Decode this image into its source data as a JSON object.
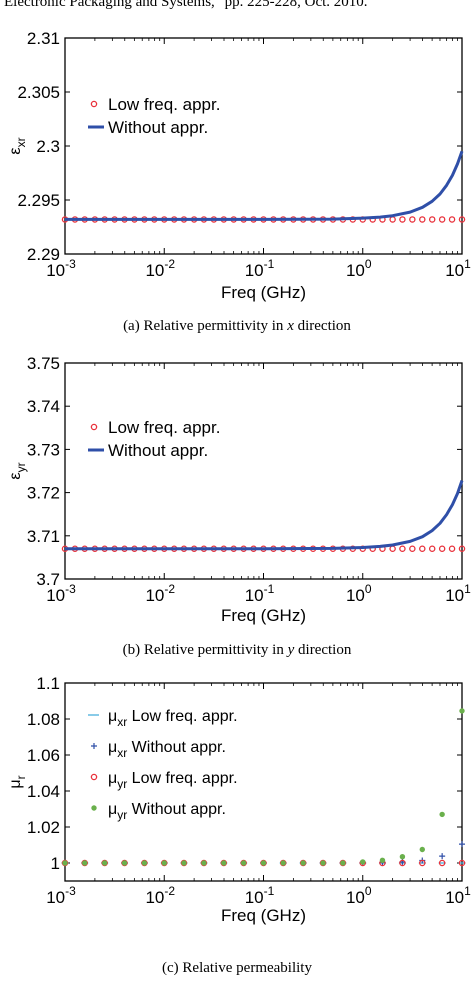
{
  "page": {
    "header_text": "Electronic Packaging and Systems,\" pp. 225-228, Oct. 2010.",
    "captions": [
      {
        "prefix": "(a) Relative permittivity in ",
        "var": "x",
        "suffix": " direction"
      },
      {
        "prefix": "(b) Relative permittivity in ",
        "var": "y",
        "suffix": " direction"
      },
      {
        "prefix": "(c) Relative permeability",
        "var": "",
        "suffix": ""
      }
    ]
  },
  "chart_data": [
    {
      "type": "line",
      "title": "",
      "xlabel": "Freq (GHz)",
      "ylabel": "ε_xr",
      "ylabel_main": "ε",
      "ylabel_sub": "xr",
      "xscale": "log",
      "xlim": [
        0.001,
        10
      ],
      "ylim": [
        2.29,
        2.31
      ],
      "xtick_exponents": [
        "-3",
        "-2",
        "-1",
        "0",
        "1"
      ],
      "yticks": [
        "2.29",
        "2.295",
        "2.3",
        "2.305",
        "2.31"
      ],
      "legend_position": "top-left",
      "series": [
        {
          "name": "Low freq. appr.",
          "legend_main": "Low freq. appr.",
          "legend_sub": "",
          "legend_suffix": "",
          "style": "open-circle",
          "color": "#e8303a",
          "x": [
            0.001,
            0.00126,
            0.00158,
            0.002,
            0.00251,
            0.00316,
            0.00398,
            0.00501,
            0.00631,
            0.00794,
            0.01,
            0.0126,
            0.0158,
            0.02,
            0.0251,
            0.0316,
            0.0398,
            0.0501,
            0.0631,
            0.0794,
            0.1,
            0.126,
            0.158,
            0.2,
            0.251,
            0.316,
            0.398,
            0.501,
            0.631,
            0.794,
            1,
            1.26,
            1.58,
            2,
            2.51,
            3.16,
            3.98,
            5.01,
            6.31,
            7.94,
            10
          ],
          "y": [
            2.2932,
            2.2932,
            2.2932,
            2.2932,
            2.2932,
            2.2932,
            2.2932,
            2.2932,
            2.2932,
            2.2932,
            2.2932,
            2.2932,
            2.2932,
            2.2932,
            2.2932,
            2.2932,
            2.2932,
            2.2932,
            2.2932,
            2.2932,
            2.2932,
            2.2932,
            2.2932,
            2.2932,
            2.2932,
            2.2932,
            2.2932,
            2.2932,
            2.2932,
            2.2932,
            2.2932,
            2.2932,
            2.2932,
            2.2932,
            2.2932,
            2.2932,
            2.2932,
            2.2932,
            2.2932,
            2.2932,
            2.2932
          ]
        },
        {
          "name": "Without appr.",
          "legend_main": "Without appr.",
          "legend_sub": "",
          "legend_suffix": "",
          "style": "line",
          "color": "#2f4fa8",
          "x": [
            0.001,
            0.01,
            0.1,
            0.5,
            1,
            1.5,
            2,
            3,
            4,
            5,
            6,
            7,
            8,
            9,
            10
          ],
          "y": [
            2.2932,
            2.2932,
            2.2932,
            2.29323,
            2.29332,
            2.29342,
            2.29355,
            2.29388,
            2.29432,
            2.29488,
            2.29556,
            2.29636,
            2.29728,
            2.29834,
            2.29952
          ]
        }
      ]
    },
    {
      "type": "line",
      "title": "",
      "xlabel": "Freq (GHz)",
      "ylabel": "ε_yr",
      "ylabel_main": "ε",
      "ylabel_sub": "yr",
      "xscale": "log",
      "xlim": [
        0.001,
        10
      ],
      "ylim": [
        3.7,
        3.75
      ],
      "xtick_exponents": [
        "-3",
        "-2",
        "-1",
        "0",
        "1"
      ],
      "yticks": [
        "3.7",
        "3.71",
        "3.72",
        "3.73",
        "3.74",
        "3.75"
      ],
      "legend_position": "top-left",
      "series": [
        {
          "name": "Low freq. appr.",
          "legend_main": "Low freq. appr.",
          "legend_sub": "",
          "legend_suffix": "",
          "style": "open-circle",
          "color": "#e8303a",
          "x": [
            0.001,
            0.00126,
            0.00158,
            0.002,
            0.00251,
            0.00316,
            0.00398,
            0.00501,
            0.00631,
            0.00794,
            0.01,
            0.0126,
            0.0158,
            0.02,
            0.0251,
            0.0316,
            0.0398,
            0.0501,
            0.0631,
            0.0794,
            0.1,
            0.126,
            0.158,
            0.2,
            0.251,
            0.316,
            0.398,
            0.501,
            0.631,
            0.794,
            1,
            1.26,
            1.58,
            2,
            2.51,
            3.16,
            3.98,
            5.01,
            6.31,
            7.94,
            10
          ],
          "y": [
            3.707,
            3.707,
            3.707,
            3.707,
            3.707,
            3.707,
            3.707,
            3.707,
            3.707,
            3.707,
            3.707,
            3.707,
            3.707,
            3.707,
            3.707,
            3.707,
            3.707,
            3.707,
            3.707,
            3.707,
            3.707,
            3.707,
            3.707,
            3.707,
            3.707,
            3.707,
            3.707,
            3.707,
            3.707,
            3.707,
            3.707,
            3.707,
            3.707,
            3.707,
            3.707,
            3.707,
            3.707,
            3.707,
            3.707,
            3.707,
            3.707
          ]
        },
        {
          "name": "Without appr.",
          "legend_main": "Without appr.",
          "legend_sub": "",
          "legend_suffix": "",
          "style": "line",
          "color": "#2f4fa8",
          "x": [
            0.001,
            0.01,
            0.1,
            0.5,
            1,
            1.5,
            2,
            3,
            4,
            5,
            6,
            7,
            8,
            9,
            10
          ],
          "y": [
            3.707,
            3.707,
            3.707,
            3.70708,
            3.7073,
            3.70755,
            3.70788,
            3.7087,
            3.7098,
            3.7112,
            3.7129,
            3.7149,
            3.7172,
            3.7198,
            3.7228
          ]
        }
      ]
    },
    {
      "type": "scatter",
      "title": "",
      "xlabel": "Freq (GHz)",
      "ylabel": "μ_r",
      "ylabel_main": "μ",
      "ylabel_sub": "r",
      "xscale": "log",
      "xlim": [
        0.001,
        10
      ],
      "ylim": [
        0.99,
        1.1
      ],
      "xtick_exponents": [
        "-3",
        "-2",
        "-1",
        "0",
        "1"
      ],
      "yticks": [
        "1",
        "1.02",
        "1.04",
        "1.06",
        "1.08",
        "1.1"
      ],
      "legend_position": "top-left",
      "series": [
        {
          "name": "μxr Low freq. appr.",
          "legend_main": "μ",
          "legend_sub": "xr",
          "legend_suffix": " Low freq. appr.",
          "style": "dash",
          "color": "#3aa8d8",
          "x": [
            0.001,
            0.00158,
            0.00251,
            0.00398,
            0.00631,
            0.01,
            0.0158,
            0.0251,
            0.0398,
            0.0631,
            0.1,
            0.158,
            0.251,
            0.398,
            0.631,
            1,
            1.58,
            2.51,
            3.98,
            6.31,
            10
          ],
          "y": [
            1,
            1,
            1,
            1,
            1,
            1,
            1,
            1,
            1,
            1,
            1,
            1,
            1,
            1,
            1,
            1,
            1,
            1,
            1,
            1,
            1
          ]
        },
        {
          "name": "μxr Without appr.",
          "legend_main": "μ",
          "legend_sub": "xr",
          "legend_suffix": " Without appr.",
          "style": "plus",
          "color": "#2f4fa8",
          "x": [
            0.001,
            0.00158,
            0.00251,
            0.00398,
            0.00631,
            0.01,
            0.0158,
            0.0251,
            0.0398,
            0.0631,
            0.1,
            0.158,
            0.251,
            0.398,
            0.631,
            1,
            1.58,
            2.51,
            3.98,
            6.31,
            10
          ],
          "y": [
            1,
            1,
            1,
            1,
            1,
            1,
            1,
            1,
            1,
            1,
            1,
            1,
            1,
            1,
            1,
            1,
            1.0002,
            1.0006,
            1.0014,
            1.0038,
            1.0105
          ]
        },
        {
          "name": "μyr Low freq. appr.",
          "legend_main": "μ",
          "legend_sub": "yr",
          "legend_suffix": " Low freq. appr.",
          "style": "open-circle",
          "color": "#e8303a",
          "x": [
            0.001,
            0.00158,
            0.00251,
            0.00398,
            0.00631,
            0.01,
            0.0158,
            0.0251,
            0.0398,
            0.0631,
            0.1,
            0.158,
            0.251,
            0.398,
            0.631,
            1,
            1.58,
            2.51,
            3.98,
            6.31,
            10
          ],
          "y": [
            1,
            1,
            1,
            1,
            1,
            1,
            1,
            1,
            1,
            1,
            1,
            1,
            1,
            1,
            1,
            1,
            1,
            1,
            1,
            1,
            1
          ]
        },
        {
          "name": "μyr Without appr.",
          "legend_main": "μ",
          "legend_sub": "yr",
          "legend_suffix": " Without appr.",
          "style": "dot",
          "color": "#6ab04c",
          "x": [
            0.001,
            0.00158,
            0.00251,
            0.00398,
            0.00631,
            0.01,
            0.0158,
            0.0251,
            0.0398,
            0.0631,
            0.1,
            0.158,
            0.251,
            0.398,
            0.631,
            1,
            1.58,
            2.51,
            3.98,
            6.31,
            10
          ],
          "y": [
            1,
            1,
            1,
            1,
            1,
            1,
            1,
            1,
            1,
            1,
            1,
            1,
            1,
            1,
            1,
            1.0006,
            1.0015,
            1.0035,
            1.0075,
            1.027,
            1.0845
          ]
        }
      ]
    }
  ]
}
